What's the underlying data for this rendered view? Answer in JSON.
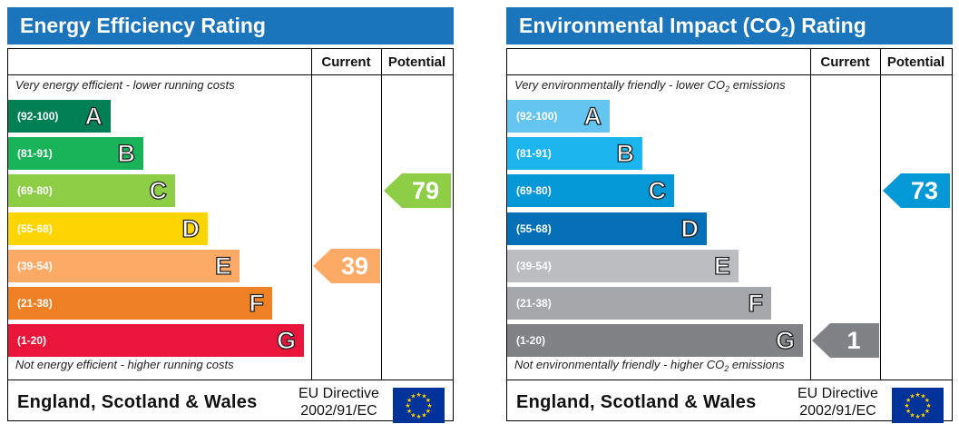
{
  "chart_data": [
    {
      "type": "bar",
      "title": "Energy Efficiency Rating",
      "columns": [
        "Current",
        "Potential"
      ],
      "top_note": "Very energy efficient - lower running costs",
      "bottom_note": "Not energy efficient - higher running costs",
      "bands": [
        {
          "range": "(92-100)",
          "letter": "A",
          "color": "#008054"
        },
        {
          "range": "(81-91)",
          "letter": "B",
          "color": "#19b459"
        },
        {
          "range": "(69-80)",
          "letter": "C",
          "color": "#8dce46"
        },
        {
          "range": "(55-68)",
          "letter": "D",
          "color": "#ffd500"
        },
        {
          "range": "(39-54)",
          "letter": "E",
          "color": "#fcaa65"
        },
        {
          "range": "(21-38)",
          "letter": "F",
          "color": "#ef8023"
        },
        {
          "range": "(1-20)",
          "letter": "G",
          "color": "#e9153b"
        }
      ],
      "current": {
        "value": 39,
        "band": "E",
        "color": "#fcaa65"
      },
      "potential": {
        "value": 79,
        "band": "C",
        "color": "#8dce46"
      },
      "footer_country": "England, Scotland & Wales",
      "directive_line1": "EU Directive",
      "directive_line2": "2002/91/EC"
    },
    {
      "type": "bar",
      "title": "Environmental Impact (CO2) Rating",
      "columns": [
        "Current",
        "Potential"
      ],
      "top_note": "Very environmentally friendly - lower CO2 emissions",
      "bottom_note": "Not environmentally friendly - higher CO2 emissions",
      "bands": [
        {
          "range": "(92-100)",
          "letter": "A",
          "color": "#63c5f0"
        },
        {
          "range": "(81-91)",
          "letter": "B",
          "color": "#1cb5ed"
        },
        {
          "range": "(69-80)",
          "letter": "C",
          "color": "#0598d6"
        },
        {
          "range": "(55-68)",
          "letter": "D",
          "color": "#0570b8"
        },
        {
          "range": "(39-54)",
          "letter": "E",
          "color": "#bbbdbf"
        },
        {
          "range": "(21-38)",
          "letter": "F",
          "color": "#a5a7aa"
        },
        {
          "range": "(1-20)",
          "letter": "G",
          "color": "#808285"
        }
      ],
      "current": {
        "value": 1,
        "band": "G",
        "color": "#808285"
      },
      "potential": {
        "value": 73,
        "band": "C",
        "color": "#0598d6"
      },
      "footer_country": "England, Scotland & Wales",
      "directive_line1": "EU Directive",
      "directive_line2": "2002/91/EC"
    }
  ],
  "icons": {
    "eu_flag": "eu-flag-icon"
  },
  "colors": {
    "title_bar": "#1b75bc",
    "eu_flag_blue": "#003399",
    "eu_flag_stars": "#ffcc00"
  }
}
